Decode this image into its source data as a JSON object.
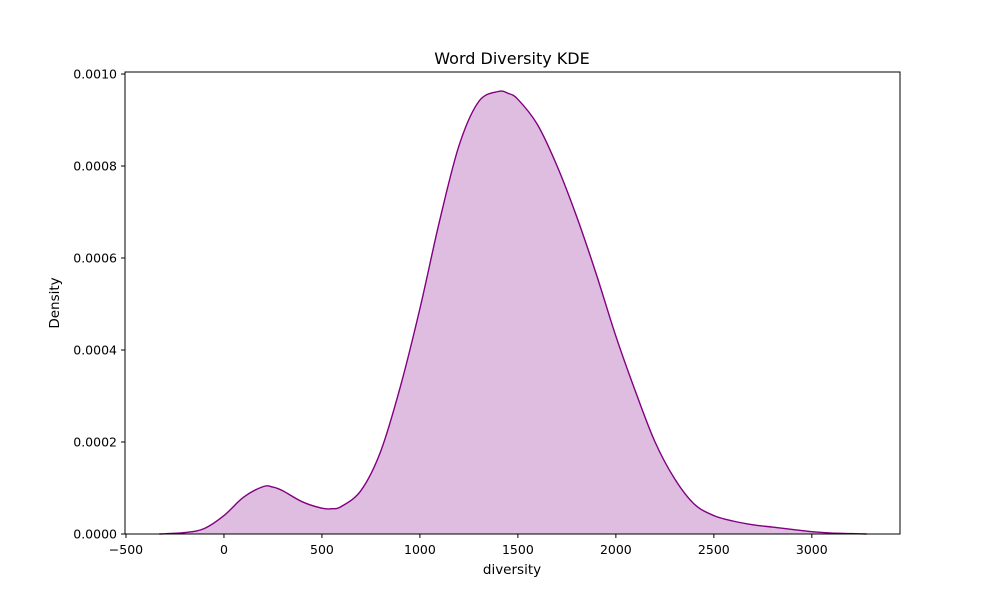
{
  "chart_data": {
    "type": "area",
    "title": "Word Diversity KDE",
    "xlabel": "diversity",
    "ylabel": "Density",
    "xlim": [
      -500,
      3500
    ],
    "ylim": [
      0,
      0.001
    ],
    "x_ticks": [
      "−500",
      "0",
      "500",
      "1000",
      "1500",
      "2000",
      "2500",
      "3000"
    ],
    "x_tick_values": [
      -500,
      0,
      500,
      1000,
      1500,
      2000,
      2500,
      3000
    ],
    "y_ticks": [
      "0.0000",
      "0.0002",
      "0.0004",
      "0.0006",
      "0.0008",
      "0.0010"
    ],
    "y_tick_values": [
      0,
      0.0002,
      0.0004,
      0.0006,
      0.0008,
      0.001
    ],
    "grid": false,
    "legend": "none",
    "colors": {
      "line": "#800080",
      "fill": "#dfbde0"
    },
    "series": [
      {
        "x": [
          -330,
          -200,
          -100,
          0,
          100,
          200,
          250,
          300,
          400,
          500,
          550,
          600,
          700,
          800,
          900,
          1000,
          1100,
          1200,
          1300,
          1400,
          1450,
          1500,
          1600,
          1700,
          1800,
          1900,
          2000,
          2100,
          2200,
          2300,
          2400,
          2500,
          2600,
          2700,
          2800,
          2900,
          3000,
          3100,
          3200,
          3280
        ],
        "y": [
          0.0,
          3e-06,
          1.2e-05,
          4e-05,
          8e-05,
          0.000103,
          0.000102,
          9.4e-05,
          7e-05,
          5.6e-05,
          5.5e-05,
          6e-05,
          9.5e-05,
          0.00018,
          0.00032,
          0.00049,
          0.00068,
          0.000845,
          0.00094,
          0.000962,
          0.000958,
          0.000945,
          0.00089,
          0.0008,
          0.00069,
          0.000565,
          0.00043,
          0.00031,
          0.0002,
          0.00012,
          6.5e-05,
          4e-05,
          2.8e-05,
          2e-05,
          1.5e-05,
          1e-05,
          5e-06,
          2e-06,
          1e-06,
          0.0
        ]
      }
    ]
  }
}
